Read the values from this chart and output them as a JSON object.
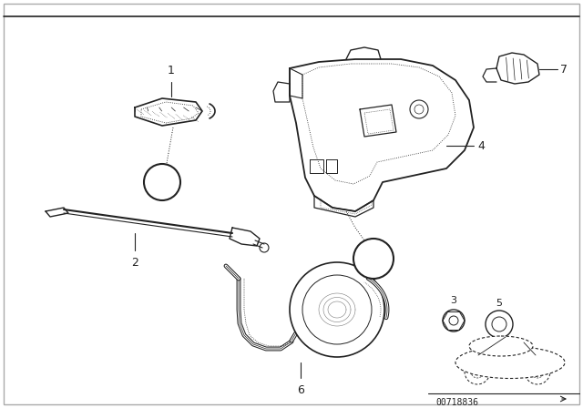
{
  "background_color": "#ffffff",
  "border_color": "#cccccc",
  "line_color": "#222222",
  "fig_width": 6.4,
  "fig_height": 4.48,
  "dpi": 100,
  "part_code": "00718836",
  "xlim": [
    0,
    640
  ],
  "ylim": [
    0,
    448
  ]
}
